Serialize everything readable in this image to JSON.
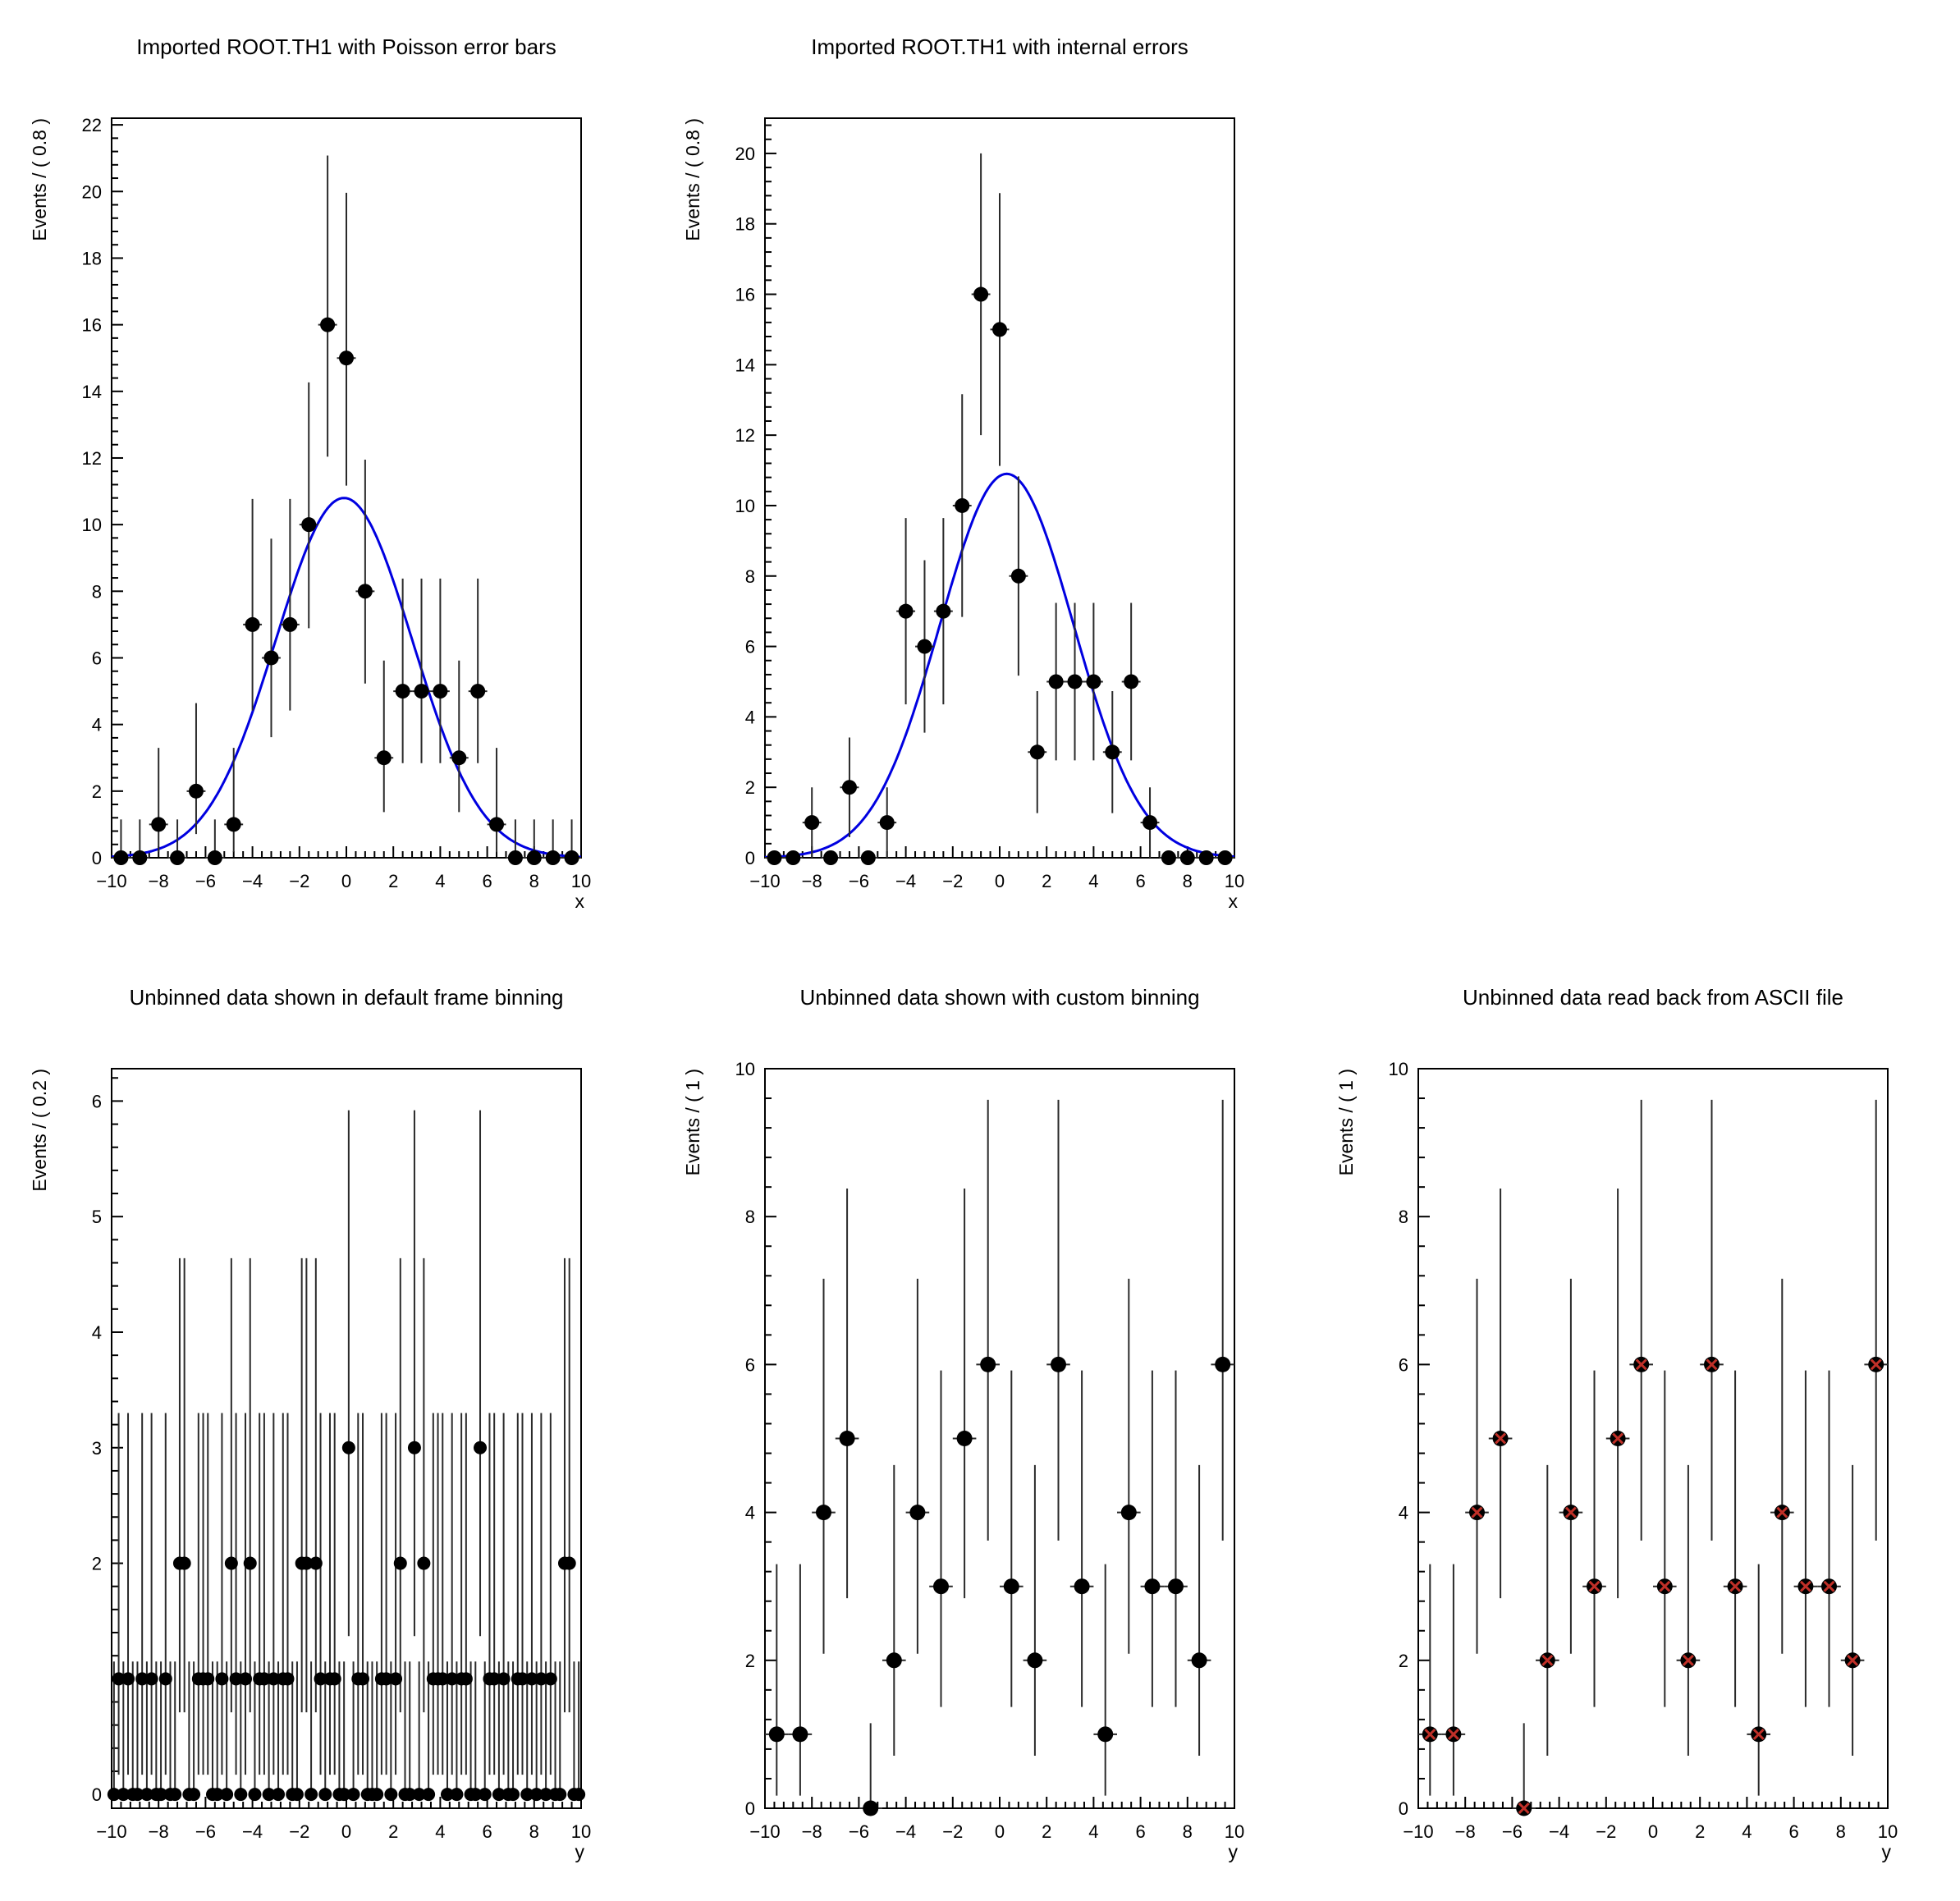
{
  "page": {
    "background": "#ffffff"
  },
  "poisson_interval": {
    "0": [
      0,
      1.15
    ],
    "1": [
      0.83,
      2.3
    ],
    "2": [
      1.29,
      2.64
    ],
    "3": [
      1.63,
      2.92
    ],
    "4": [
      1.91,
      3.16
    ],
    "5": [
      2.16,
      3.38
    ],
    "6": [
      2.38,
      3.58
    ],
    "7": [
      2.58,
      3.77
    ],
    "8": [
      2.77,
      3.95
    ],
    "9": [
      2.94,
      4.11
    ],
    "10": [
      3.11,
      4.27
    ],
    "11": [
      3.27,
      4.42
    ],
    "12": [
      3.42,
      4.56
    ],
    "13": [
      3.56,
      4.7
    ],
    "14": [
      3.7,
      4.83
    ],
    "15": [
      3.83,
      4.96
    ],
    "16": [
      3.96,
      5.08
    ]
  },
  "style": {
    "errorbar_color": "#2a2a2a",
    "marker_color": "#000000",
    "frame_color": "#000000"
  },
  "chart_data": [
    {
      "type": "scatter",
      "title": "Imported ROOT.TH1 with Poisson error bars",
      "xlabel": "x",
      "ylabel": "Events / ( 0.8 )",
      "xlim": [
        -10,
        10
      ],
      "ylim": [
        0,
        22.2
      ],
      "xticks": {
        "values": [
          -10,
          -8,
          -6,
          -4,
          -2,
          0,
          2,
          4,
          6,
          8,
          10
        ],
        "labels": [
          "−10",
          "−8",
          "−6",
          "−4",
          "−2",
          "0",
          "2",
          "4",
          "6",
          "8",
          "10"
        ]
      },
      "yticks": {
        "values": [
          0,
          2,
          4,
          6,
          8,
          10,
          12,
          14,
          16,
          18,
          20,
          22
        ],
        "labels": [
          "0",
          "2",
          "4",
          "6",
          "8",
          "10",
          "12",
          "14",
          "16",
          "18",
          "20",
          "22"
        ]
      },
      "minor_x": 0.4,
      "minor_y": 0.4,
      "x": [
        -9.6,
        -8.8,
        -8,
        -7.2,
        -6.4,
        -5.6,
        -4.8,
        -4,
        -3.2,
        -2.4,
        -1.6,
        -0.8,
        0,
        0.8,
        1.6,
        2.4,
        3.2,
        4,
        4.8,
        5.6,
        6.4,
        7.2,
        8,
        8.8,
        9.6
      ],
      "y": [
        0,
        0,
        1,
        0,
        2,
        0,
        1,
        7,
        6,
        7,
        10,
        16,
        15,
        8,
        3,
        5,
        5,
        5,
        3,
        5,
        1,
        0,
        0,
        0,
        0
      ],
      "error_mode": "poisson",
      "bin_half_width": 0.4,
      "marker": "circle",
      "marker_radius": 9,
      "curve": {
        "shape": "gaussian",
        "mean": -0.1,
        "sigma": 2.9,
        "peak": 10.8,
        "color": "#0000e0"
      }
    },
    {
      "type": "scatter",
      "title": "Imported ROOT.TH1 with internal errors",
      "xlabel": "x",
      "ylabel": "Events / ( 0.8 )",
      "xlim": [
        -10,
        10
      ],
      "ylim": [
        0,
        21
      ],
      "xticks": {
        "values": [
          -10,
          -8,
          -6,
          -4,
          -2,
          0,
          2,
          4,
          6,
          8,
          10
        ],
        "labels": [
          "−10",
          "−8",
          "−6",
          "−4",
          "−2",
          "0",
          "2",
          "4",
          "6",
          "8",
          "10"
        ]
      },
      "yticks": {
        "values": [
          0,
          2,
          4,
          6,
          8,
          10,
          12,
          14,
          16,
          18,
          20
        ],
        "labels": [
          "0",
          "2",
          "4",
          "6",
          "8",
          "10",
          "12",
          "14",
          "16",
          "18",
          "20"
        ]
      },
      "minor_x": 0.4,
      "minor_y": 0.4,
      "x": [
        -9.6,
        -8.8,
        -8,
        -7.2,
        -6.4,
        -5.6,
        -4.8,
        -4,
        -3.2,
        -2.4,
        -1.6,
        -0.8,
        0,
        0.8,
        1.6,
        2.4,
        3.2,
        4,
        4.8,
        5.6,
        6.4,
        7.2,
        8,
        8.8,
        9.6
      ],
      "y": [
        0,
        0,
        1,
        0,
        2,
        0,
        1,
        7,
        6,
        7,
        10,
        16,
        15,
        8,
        3,
        5,
        5,
        5,
        3,
        5,
        1,
        0,
        0,
        0,
        0
      ],
      "error_mode": "sqrt",
      "bin_half_width": 0.4,
      "marker": "circle",
      "marker_radius": 9,
      "curve": {
        "shape": "gaussian",
        "mean": 0.3,
        "sigma": 2.85,
        "peak": 10.9,
        "color": "#0000e0"
      }
    },
    {
      "type": "scatter",
      "title": "Unbinned data shown in default frame binning",
      "xlabel": "y",
      "ylabel": "Events / ( 0.2 )",
      "xlim": [
        -10,
        10
      ],
      "ylim": [
        -0.12,
        6.28
      ],
      "xticks": {
        "values": [
          -10,
          -8,
          -6,
          -4,
          -2,
          0,
          2,
          4,
          6,
          8,
          10
        ],
        "labels": [
          "−10",
          "−8",
          "−6",
          "−4",
          "−2",
          "0",
          "2",
          "4",
          "6",
          "8",
          "10"
        ]
      },
      "yticks": {
        "values": [
          0,
          1,
          2,
          3,
          4,
          5,
          6
        ],
        "labels": [
          "0",
          "",
          "2",
          "3",
          "4",
          "5",
          "6"
        ]
      },
      "minor_x": 0.4,
      "minor_y": 0.2,
      "x_start": -9.9,
      "x_step": 0.2,
      "y": [
        0,
        1,
        0,
        1,
        0,
        0,
        1,
        0,
        1,
        0,
        0,
        1,
        0,
        0,
        2,
        2,
        0,
        0,
        1,
        1,
        1,
        0,
        0,
        1,
        0,
        2,
        1,
        0,
        1,
        2,
        0,
        1,
        1,
        0,
        1,
        0,
        1,
        1,
        0,
        0,
        2,
        2,
        0,
        2,
        1,
        0,
        1,
        1,
        0,
        0,
        3,
        0,
        1,
        1,
        0,
        0,
        0,
        1,
        1,
        0,
        1,
        2,
        0,
        0,
        3,
        0,
        2,
        0,
        1,
        1,
        1,
        0,
        1,
        0,
        1,
        1,
        0,
        0,
        3,
        0,
        1,
        1,
        0,
        1,
        0,
        0,
        1,
        1,
        0,
        1,
        0,
        1,
        0,
        1,
        0,
        0,
        2,
        2,
        0,
        0
      ],
      "error_mode": "poisson",
      "bin_half_width": 0.1,
      "marker": "circle",
      "marker_radius": 8
    },
    {
      "type": "scatter",
      "title": "Unbinned data shown with custom binning",
      "xlabel": "y",
      "ylabel": "Events / ( 1 )",
      "xlim": [
        -10,
        10
      ],
      "ylim": [
        0,
        10
      ],
      "xticks": {
        "values": [
          -10,
          -8,
          -6,
          -4,
          -2,
          0,
          2,
          4,
          6,
          8,
          10
        ],
        "labels": [
          "−10",
          "−8",
          "−6",
          "−4",
          "−2",
          "0",
          "2",
          "4",
          "6",
          "8",
          "10"
        ]
      },
      "yticks": {
        "values": [
          0,
          2,
          4,
          6,
          8,
          10
        ],
        "labels": [
          "0",
          "2",
          "4",
          "6",
          "8",
          "10"
        ]
      },
      "minor_x": 0.4,
      "minor_y": 0.4,
      "x_start": -9.5,
      "x_step": 1,
      "y": [
        1,
        1,
        4,
        5,
        0,
        2,
        4,
        3,
        5,
        6,
        3,
        2,
        6,
        3,
        1,
        4,
        3,
        3,
        2,
        6
      ],
      "error_mode": "poisson",
      "bin_half_width": 0.5,
      "marker": "circle",
      "marker_radius": 9.5
    },
    {
      "type": "scatter",
      "title": "Unbinned data read back from ASCII file",
      "xlabel": "y",
      "ylabel": "Events / ( 1 )",
      "xlim": [
        -10,
        10
      ],
      "ylim": [
        0,
        10
      ],
      "xticks": {
        "values": [
          -10,
          -8,
          -6,
          -4,
          -2,
          0,
          2,
          4,
          6,
          8,
          10
        ],
        "labels": [
          "−10",
          "−8",
          "−6",
          "−4",
          "−2",
          "0",
          "2",
          "4",
          "6",
          "8",
          "10"
        ]
      },
      "yticks": {
        "values": [
          0,
          2,
          4,
          6,
          8,
          10
        ],
        "labels": [
          "0",
          "2",
          "4",
          "6",
          "8",
          "10"
        ]
      },
      "minor_x": 0.4,
      "minor_y": 0.4,
      "x_start": -9.5,
      "x_step": 1,
      "y": [
        1,
        1,
        4,
        5,
        0,
        2,
        4,
        3,
        5,
        6,
        3,
        2,
        6,
        3,
        1,
        4,
        3,
        3,
        2,
        6
      ],
      "error_mode": "poisson",
      "bin_half_width": 0.5,
      "marker": "circle-x",
      "marker_radius": 9.5,
      "marker_x_color": "#c03028"
    }
  ]
}
